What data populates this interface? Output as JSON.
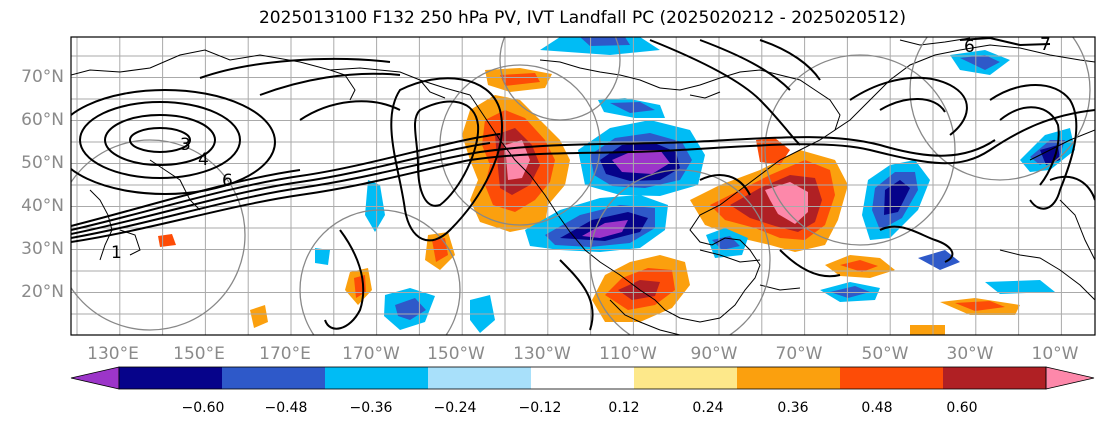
{
  "title": "2025013100 F132 250 hPa PV, IVT Landfall PC (2025020212 - 2025020512)",
  "lat_labels": [
    "70°N",
    "60°N",
    "50°N",
    "40°N",
    "30°N",
    "20°N"
  ],
  "lon_labels": [
    "130°E",
    "150°E",
    "170°E",
    "170°W",
    "150°W",
    "130°W",
    "110°W",
    "90°W",
    "70°W",
    "50°W",
    "30°W",
    "10°W"
  ],
  "contour_labels": [
    "3",
    "4",
    "6",
    "1",
    "6",
    "7"
  ],
  "colorbar": {
    "colors": [
      "#9c35c9",
      "#06038a",
      "#2e59c9",
      "#00bcf5",
      "#a8e0fa",
      "#ffffff",
      "#fde88a",
      "#fba00e",
      "#fd4c07",
      "#b02024",
      "#fd88aa"
    ],
    "tick_labels": [
      "−0.60",
      "−0.48",
      "−0.36",
      "−0.24",
      "−0.12",
      "0.12",
      "0.24",
      "0.36",
      "0.48",
      "0.60"
    ]
  },
  "colors": {
    "grid": "#aaaaaa",
    "pv_contour": "#000000",
    "coast": "#000000",
    "circle": "#888888"
  }
}
